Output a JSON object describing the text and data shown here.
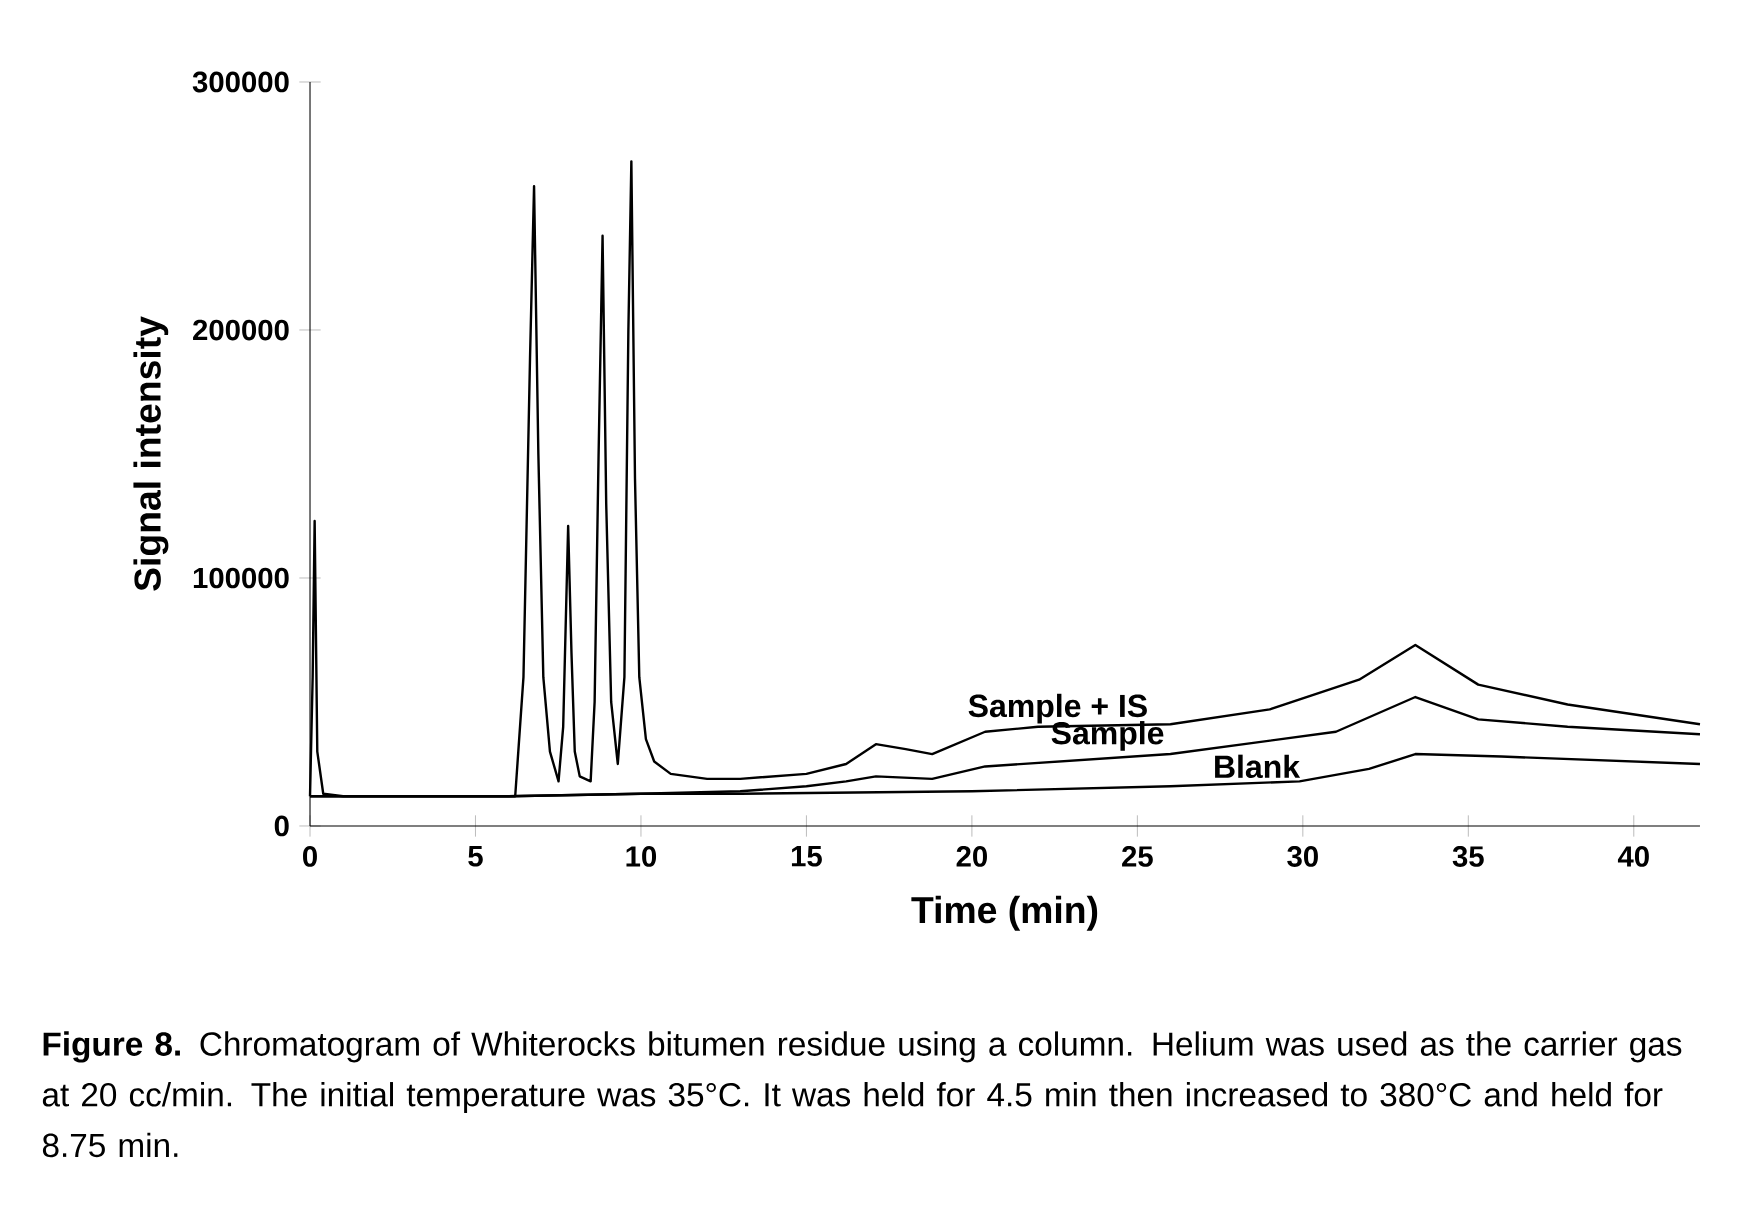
{
  "chart_data": {
    "type": "line",
    "xlabel": "Time (min)",
    "ylabel": "Signal intensity",
    "xlim": [
      0,
      42
    ],
    "ylim": [
      0,
      300000
    ],
    "xticks": [
      0,
      5,
      10,
      15,
      20,
      25,
      30,
      35,
      40
    ],
    "yticks": [
      0,
      100000,
      200000,
      300000
    ],
    "series": [
      {
        "name": "Sample + IS",
        "color": "#000000",
        "x": [
          0,
          0.08,
          0.14,
          0.22,
          0.4,
          1,
          6.2,
          6.45,
          6.65,
          6.77,
          6.9,
          7.05,
          7.25,
          7.51,
          7.65,
          7.8,
          7.9,
          8.0,
          8.15,
          8.48,
          8.6,
          8.72,
          8.84,
          8.95,
          9.1,
          9.3,
          9.5,
          9.62,
          9.71,
          9.82,
          9.95,
          10.15,
          10.4,
          10.9,
          12,
          13,
          15,
          16.2,
          17.1,
          18,
          18.8,
          20.4,
          22,
          26,
          29,
          31.7,
          33.4,
          35.3,
          38,
          42
        ],
        "values": [
          12000,
          60000,
          123000,
          30000,
          13000,
          12000,
          12000,
          60000,
          190000,
          258000,
          150000,
          60000,
          30000,
          18000,
          40000,
          121000,
          70000,
          30000,
          20000,
          18000,
          50000,
          150000,
          238000,
          130000,
          50000,
          25000,
          60000,
          200000,
          268000,
          140000,
          60000,
          35000,
          26000,
          21000,
          19000,
          19000,
          21000,
          25000,
          33000,
          31000,
          29000,
          38000,
          40000,
          41000,
          47000,
          59000,
          73000,
          57000,
          49000,
          41000
        ]
      },
      {
        "name": "Sample",
        "color": "#000000",
        "x": [
          0,
          6,
          10,
          13,
          15,
          16.2,
          17.1,
          18.8,
          20.4,
          26,
          31,
          33.4,
          35.3,
          38,
          42
        ],
        "values": [
          12000,
          12000,
          13000,
          14000,
          16000,
          18000,
          20000,
          19000,
          24000,
          29000,
          38000,
          52000,
          43000,
          40000,
          37000
        ]
      },
      {
        "name": "Blank",
        "color": "#000000",
        "x": [
          0,
          6,
          10,
          13,
          20,
          26,
          29.9,
          32,
          33.4,
          36,
          42
        ],
        "values": [
          12000,
          12000,
          13000,
          13000,
          14000,
          16000,
          18000,
          23000,
          29000,
          28000,
          25000
        ]
      }
    ],
    "annotations": [
      "**Figure 8.** Chromatogram of Whiterocks bitumen residue using a column. Helium was used as the carrier gas at 20 cc/min. The initial temperature was 35°C. It was held for 4.5 min then increased to 380°C and held for 8.75 min."
    ]
  }
}
